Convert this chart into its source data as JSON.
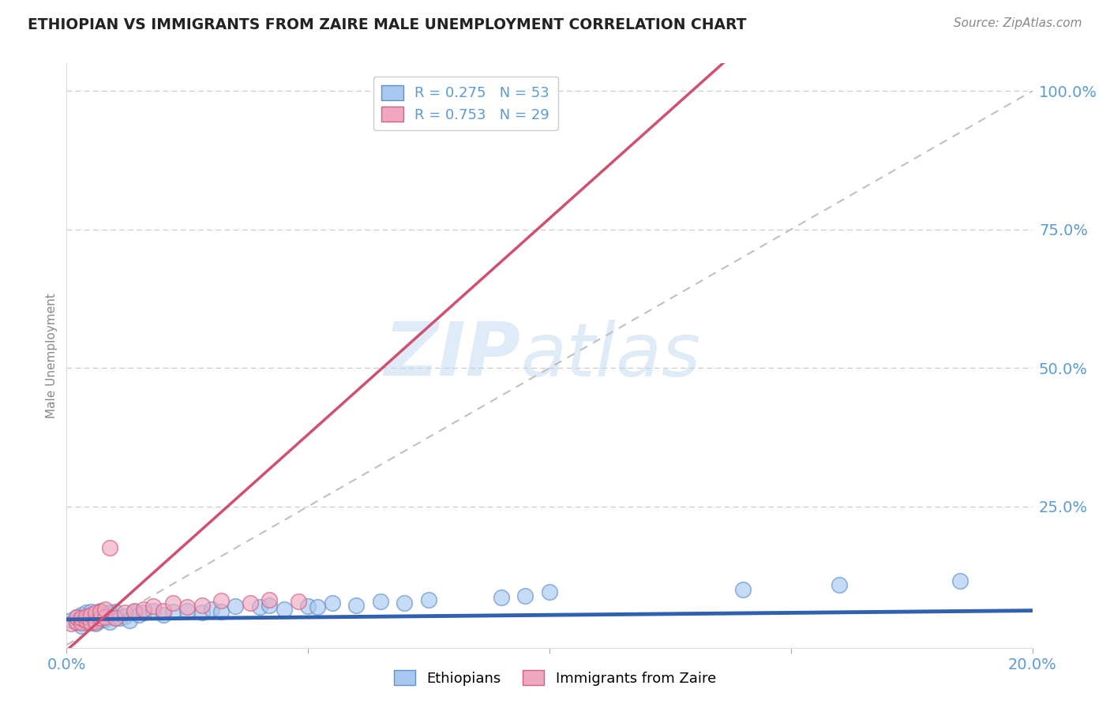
{
  "title": "ETHIOPIAN VS IMMIGRANTS FROM ZAIRE MALE UNEMPLOYMENT CORRELATION CHART",
  "source": "Source: ZipAtlas.com",
  "ylabel": "Male Unemployment",
  "xlim": [
    0.0,
    0.2
  ],
  "ylim": [
    -0.005,
    1.05
  ],
  "legend_r1": "R = 0.275",
  "legend_n1": "N = 53",
  "legend_r2": "R = 0.753",
  "legend_n2": "N = 29",
  "blue_scatter_color": "#A8C8F0",
  "blue_edge_color": "#6090C8",
  "pink_scatter_color": "#F0A8C0",
  "pink_edge_color": "#D06080",
  "blue_line_color": "#3060B0",
  "pink_line_color": "#D05070",
  "ref_line_color": "#C0C0C0",
  "watermark_color": "#C0D8F0",
  "title_color": "#222222",
  "axis_label_color": "#5B9BD5",
  "grid_color": "#C8C8C8",
  "background_color": "#FFFFFF",
  "eth_slope": 0.08,
  "eth_intercept": 0.046,
  "zaire_slope": 7.8,
  "zaire_intercept": -0.01,
  "ethiopians_x": [
    0.001,
    0.002,
    0.002,
    0.003,
    0.003,
    0.003,
    0.004,
    0.004,
    0.004,
    0.005,
    0.005,
    0.005,
    0.006,
    0.006,
    0.007,
    0.007,
    0.007,
    0.008,
    0.008,
    0.009,
    0.009,
    0.01,
    0.01,
    0.011,
    0.012,
    0.013,
    0.014,
    0.015,
    0.016,
    0.018,
    0.02,
    0.022,
    0.025,
    0.028,
    0.03,
    0.032,
    0.035,
    0.04,
    0.042,
    0.045,
    0.05,
    0.052,
    0.055,
    0.06,
    0.065,
    0.07,
    0.075,
    0.09,
    0.095,
    0.1,
    0.14,
    0.16,
    0.185
  ],
  "ethiopians_y": [
    0.045,
    0.04,
    0.05,
    0.035,
    0.045,
    0.055,
    0.04,
    0.048,
    0.058,
    0.042,
    0.05,
    0.06,
    0.038,
    0.052,
    0.044,
    0.054,
    0.062,
    0.046,
    0.056,
    0.042,
    0.058,
    0.05,
    0.06,
    0.048,
    0.052,
    0.045,
    0.06,
    0.055,
    0.058,
    0.062,
    0.055,
    0.06,
    0.062,
    0.058,
    0.065,
    0.06,
    0.07,
    0.068,
    0.072,
    0.065,
    0.07,
    0.068,
    0.075,
    0.072,
    0.078,
    0.075,
    0.082,
    0.085,
    0.088,
    0.095,
    0.1,
    0.108,
    0.115
  ],
  "zaire_x": [
    0.001,
    0.002,
    0.002,
    0.003,
    0.003,
    0.004,
    0.004,
    0.005,
    0.005,
    0.006,
    0.006,
    0.007,
    0.007,
    0.008,
    0.008,
    0.009,
    0.01,
    0.012,
    0.014,
    0.016,
    0.018,
    0.02,
    0.022,
    0.025,
    0.028,
    0.032,
    0.038,
    0.042,
    0.048
  ],
  "zaire_y": [
    0.038,
    0.042,
    0.05,
    0.04,
    0.048,
    0.045,
    0.052,
    0.04,
    0.055,
    0.042,
    0.058,
    0.048,
    0.06,
    0.05,
    0.065,
    0.175,
    0.048,
    0.058,
    0.062,
    0.065,
    0.07,
    0.062,
    0.075,
    0.068,
    0.072,
    0.08,
    0.075,
    0.082,
    0.078
  ]
}
